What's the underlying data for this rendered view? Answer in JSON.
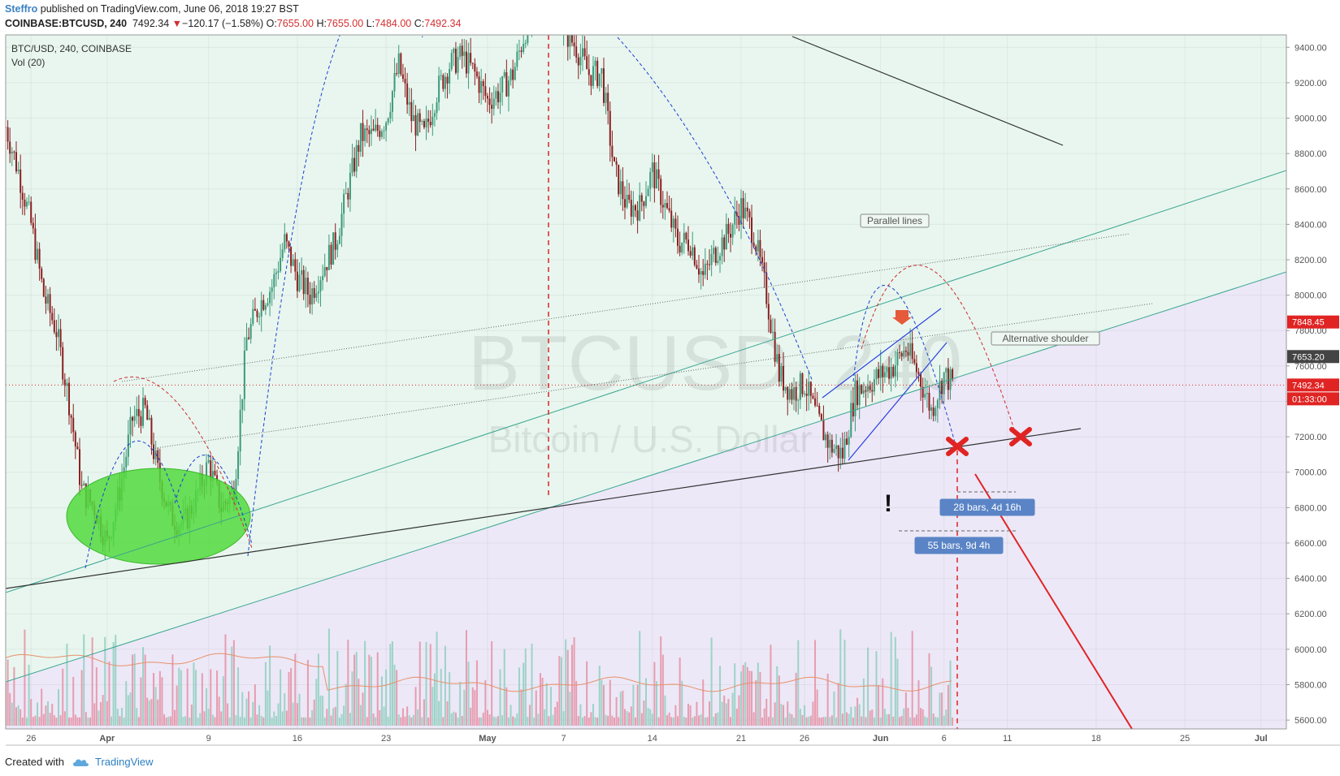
{
  "header": {
    "author": "Steffro",
    "published": "published on TradingView.com, June 06, 2018 19:27 BST",
    "symbol": "COINBASE:BTCUSD, 240",
    "last": "7492.34",
    "down_arrow": "▼",
    "change": "−120.17 (−1.58%)",
    "o_label": "O:",
    "o_val": "7655.00",
    "h_label": "H:",
    "h_val": "7655.00",
    "l_label": "L:",
    "l_val": "7484.00",
    "c_label": "C:",
    "c_val": "7492.34"
  },
  "footer": {
    "created_with": "Created with",
    "brand": "TradingView"
  },
  "colors": {
    "up": "#3c9a7a",
    "down": "#8a1f1f",
    "vol_up": "#8fcfbe",
    "vol_down": "#e58fa3",
    "bg_upper": "#e8f6ef",
    "bg_lower": "#ece8f7",
    "channel": "#3aa58f",
    "red": "#e02424"
  },
  "chart_data": {
    "type": "candlestick",
    "title": "BTC/USD, 240, COINBASE",
    "indicator": "Vol (20)",
    "watermark_symbol": "BTCUSD, 240",
    "watermark_name": "Bitcoin / U.S. Dollar",
    "ylim": [
      5550,
      9470
    ],
    "y_ticks": [
      5600,
      5800,
      6000,
      6200,
      6400,
      6600,
      6800,
      7000,
      7200,
      7400,
      7600,
      7800,
      8000,
      8200,
      8400,
      8600,
      8800,
      9000,
      9200,
      9400
    ],
    "y_tick_labels": [
      "5600.00",
      "5800.00",
      "6000.00",
      "6200.00",
      "6400.00",
      "6600.00",
      "6800.00",
      "7000.00",
      "7200.00",
      "7400.00",
      "7600.00",
      "7800.00",
      "8000.00",
      "8200.00",
      "8400.00",
      "8600.00",
      "8800.00",
      "9000.00",
      "9200.00",
      "9400.00"
    ],
    "x_range": [
      "2018-03-24",
      "2018-07-03"
    ],
    "x_ticks": [
      {
        "date": "2018-03-26",
        "label": "26"
      },
      {
        "date": "2018-04-01",
        "label": "Apr"
      },
      {
        "date": "2018-04-09",
        "label": "9"
      },
      {
        "date": "2018-04-16",
        "label": "16"
      },
      {
        "date": "2018-04-23",
        "label": "23"
      },
      {
        "date": "2018-05-01",
        "label": "May"
      },
      {
        "date": "2018-05-07",
        "label": "7"
      },
      {
        "date": "2018-05-14",
        "label": "14"
      },
      {
        "date": "2018-05-21",
        "label": "21"
      },
      {
        "date": "2018-05-26",
        "label": "26"
      },
      {
        "date": "2018-06-01",
        "label": "Jun"
      },
      {
        "date": "2018-06-06",
        "label": "6"
      },
      {
        "date": "2018-06-11",
        "label": "11"
      },
      {
        "date": "2018-06-18",
        "label": "18"
      },
      {
        "date": "2018-06-25",
        "label": "25"
      },
      {
        "date": "2018-07-01",
        "label": "Jul"
      }
    ],
    "price_path": [
      [
        "2018-03-24",
        8950
      ],
      [
        "2018-03-25",
        8700
      ],
      [
        "2018-03-26",
        8400
      ],
      [
        "2018-03-27",
        8000
      ],
      [
        "2018-03-28",
        7800
      ],
      [
        "2018-03-29",
        7400
      ],
      [
        "2018-03-30",
        6900
      ],
      [
        "2018-03-31",
        6800
      ],
      [
        "2018-04-01",
        6600
      ],
      [
        "2018-04-02",
        6900
      ],
      [
        "2018-04-03",
        7300
      ],
      [
        "2018-04-04",
        7350
      ],
      [
        "2018-04-05",
        7000
      ],
      [
        "2018-04-06",
        6750
      ],
      [
        "2018-04-07",
        6700
      ],
      [
        "2018-04-08",
        6850
      ],
      [
        "2018-04-09",
        7050
      ],
      [
        "2018-04-10",
        6800
      ],
      [
        "2018-04-11",
        6900
      ],
      [
        "2018-04-12",
        7750
      ],
      [
        "2018-04-13",
        7950
      ],
      [
        "2018-04-14",
        8050
      ],
      [
        "2018-04-15",
        8300
      ],
      [
        "2018-04-16",
        8100
      ],
      [
        "2018-04-17",
        8000
      ],
      [
        "2018-04-18",
        8150
      ],
      [
        "2018-04-19",
        8300
      ],
      [
        "2018-04-20",
        8600
      ],
      [
        "2018-04-21",
        8900
      ],
      [
        "2018-04-22",
        8900
      ],
      [
        "2018-04-23",
        9000
      ],
      [
        "2018-04-24",
        9300
      ],
      [
        "2018-04-25",
        9000
      ],
      [
        "2018-04-26",
        8900
      ],
      [
        "2018-04-27",
        9150
      ],
      [
        "2018-04-28",
        9300
      ],
      [
        "2018-04-29",
        9350
      ],
      [
        "2018-04-30",
        9250
      ],
      [
        "2018-05-01",
        9100
      ],
      [
        "2018-05-02",
        9150
      ],
      [
        "2018-05-03",
        9250
      ],
      [
        "2018-05-04",
        9500
      ],
      [
        "2018-05-05",
        9650
      ],
      [
        "2018-05-06",
        9700
      ],
      [
        "2018-05-07",
        9500
      ],
      [
        "2018-05-08",
        9400
      ],
      [
        "2018-05-09",
        9250
      ],
      [
        "2018-05-10",
        9250
      ],
      [
        "2018-05-11",
        8700
      ],
      [
        "2018-05-12",
        8500
      ],
      [
        "2018-05-13",
        8500
      ],
      [
        "2018-05-14",
        8700
      ],
      [
        "2018-05-15",
        8500
      ],
      [
        "2018-05-16",
        8300
      ],
      [
        "2018-05-17",
        8300
      ],
      [
        "2018-05-18",
        8100
      ],
      [
        "2018-05-19",
        8250
      ],
      [
        "2018-05-20",
        8350
      ],
      [
        "2018-05-21",
        8500
      ],
      [
        "2018-05-22",
        8350
      ],
      [
        "2018-05-23",
        8000
      ],
      [
        "2018-05-24",
        7550
      ],
      [
        "2018-05-25",
        7450
      ],
      [
        "2018-05-26",
        7500
      ],
      [
        "2018-05-27",
        7300
      ],
      [
        "2018-05-28",
        7150
      ],
      [
        "2018-05-29",
        7100
      ],
      [
        "2018-05-30",
        7450
      ],
      [
        "2018-05-31",
        7500
      ],
      [
        "2018-06-01",
        7550
      ],
      [
        "2018-06-02",
        7600
      ],
      [
        "2018-06-03",
        7700
      ],
      [
        "2018-06-04",
        7550
      ],
      [
        "2018-06-05",
        7350
      ],
      [
        "2018-06-06",
        7550
      ],
      [
        "2018-06-06T19:00",
        7492
      ]
    ],
    "volume_scale": [
      0,
      1,
      5600,
      6400
    ],
    "drawings_labels": {
      "parallel_lines": "Parallel lines",
      "alternative_shoulder": "Alternative shoulder",
      "bars_28": "28 bars, 4d 16h",
      "bars_55": "55 bars, 9d 4h",
      "exclamation": "!"
    },
    "price_tags": [
      {
        "value": 7848.45,
        "label": "7848.45",
        "color": "#e02424"
      },
      {
        "value": 7653.2,
        "label": "7653.20",
        "color": "#444444"
      },
      {
        "value": 7492.34,
        "label": "7492.34",
        "color": "#e02424"
      },
      {
        "value": 7440,
        "label": "01:33:00",
        "color": "#e02424"
      }
    ]
  }
}
